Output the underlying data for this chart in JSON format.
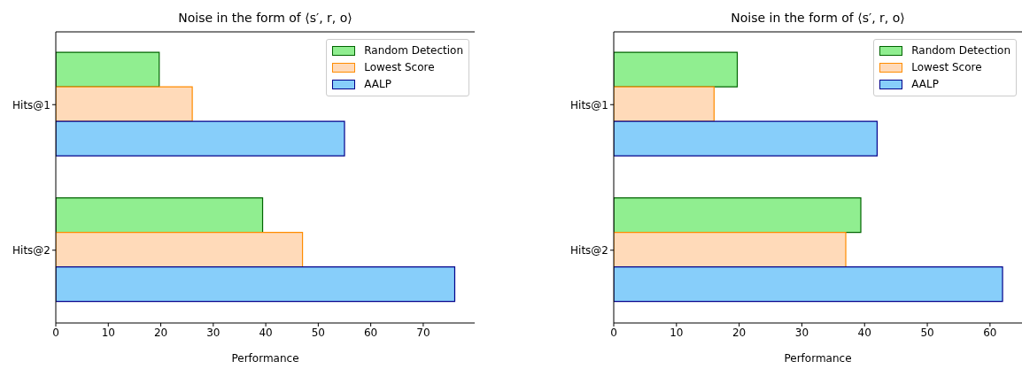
{
  "chart_data": [
    {
      "type": "bar",
      "orientation": "horizontal",
      "title": "Noise in the form of ⟨s′, r, o⟩",
      "xlabel": "Performance",
      "categories": [
        "Hits@1",
        "Hits@2"
      ],
      "series": [
        {
          "name": "Random Detection",
          "color": "#90ee90",
          "values": [
            19.7,
            39.4
          ]
        },
        {
          "name": "Lowest Score",
          "color": "#ffdab9",
          "values": [
            26.0,
            47.0
          ]
        },
        {
          "name": "AALP",
          "color": "#87cefa",
          "values": [
            55.0,
            76.0
          ]
        }
      ],
      "xlim": [
        0,
        79.8
      ],
      "xticks": [
        0,
        10,
        20,
        30,
        40,
        50,
        60,
        70
      ],
      "legend": "top right",
      "grid": false
    },
    {
      "type": "bar",
      "orientation": "horizontal",
      "title": "Noise in the form of ⟨s′, r, o⟩",
      "xlabel": "Performance",
      "categories": [
        "Hits@1",
        "Hits@2"
      ],
      "series": [
        {
          "name": "Random Detection",
          "color": "#90ee90",
          "values": [
            19.7,
            39.4
          ]
        },
        {
          "name": "Lowest Score",
          "color": "#ffdab9",
          "values": [
            16.0,
            37.0
          ]
        },
        {
          "name": "AALP",
          "color": "#87cefa",
          "values": [
            42.0,
            62.0
          ]
        }
      ],
      "xlim": [
        0,
        65.1
      ],
      "xticks": [
        0,
        10,
        20,
        30,
        40,
        50,
        60
      ],
      "legend": "top right",
      "grid": false
    }
  ]
}
